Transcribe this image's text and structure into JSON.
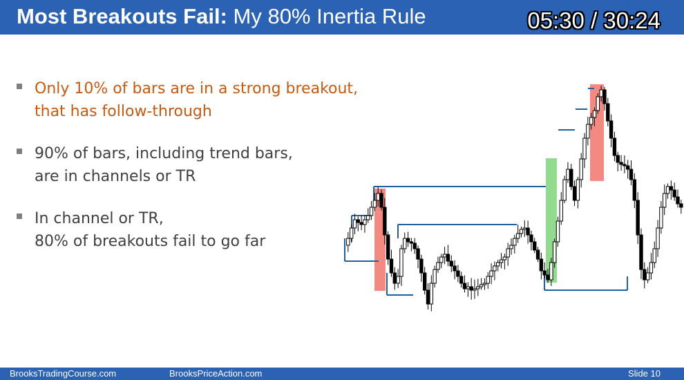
{
  "header": {
    "title_bold": "Most Breakouts Fail:",
    "title_rest": "My 80% Inertia Rule",
    "timer": "05:30 / 30:24"
  },
  "bullets": [
    {
      "lines": [
        "Only 10% of bars are in a strong breakout,",
        "that has follow-through"
      ],
      "color": "#c55a11"
    },
    {
      "lines": [
        "90% of bars, including trend bars,",
        "are in channels or TR"
      ],
      "color": "#3f3f3f"
    },
    {
      "lines": [
        "In channel or TR,",
        "80% of breakouts fail to go far"
      ],
      "color": "#3f3f3f"
    }
  ],
  "footer": {
    "left": "BrooksTradingCourse.com",
    "center": "BrooksPriceAction.com",
    "slide": "Slide  10"
  },
  "colors": {
    "header_bg": "#2b62b3",
    "accent_text": "#c55a11",
    "body_text": "#3f3f3f",
    "breakout_line": "#1f5fa0",
    "red_highlight": "#f0766b",
    "green_highlight": "#7fd57a"
  }
}
